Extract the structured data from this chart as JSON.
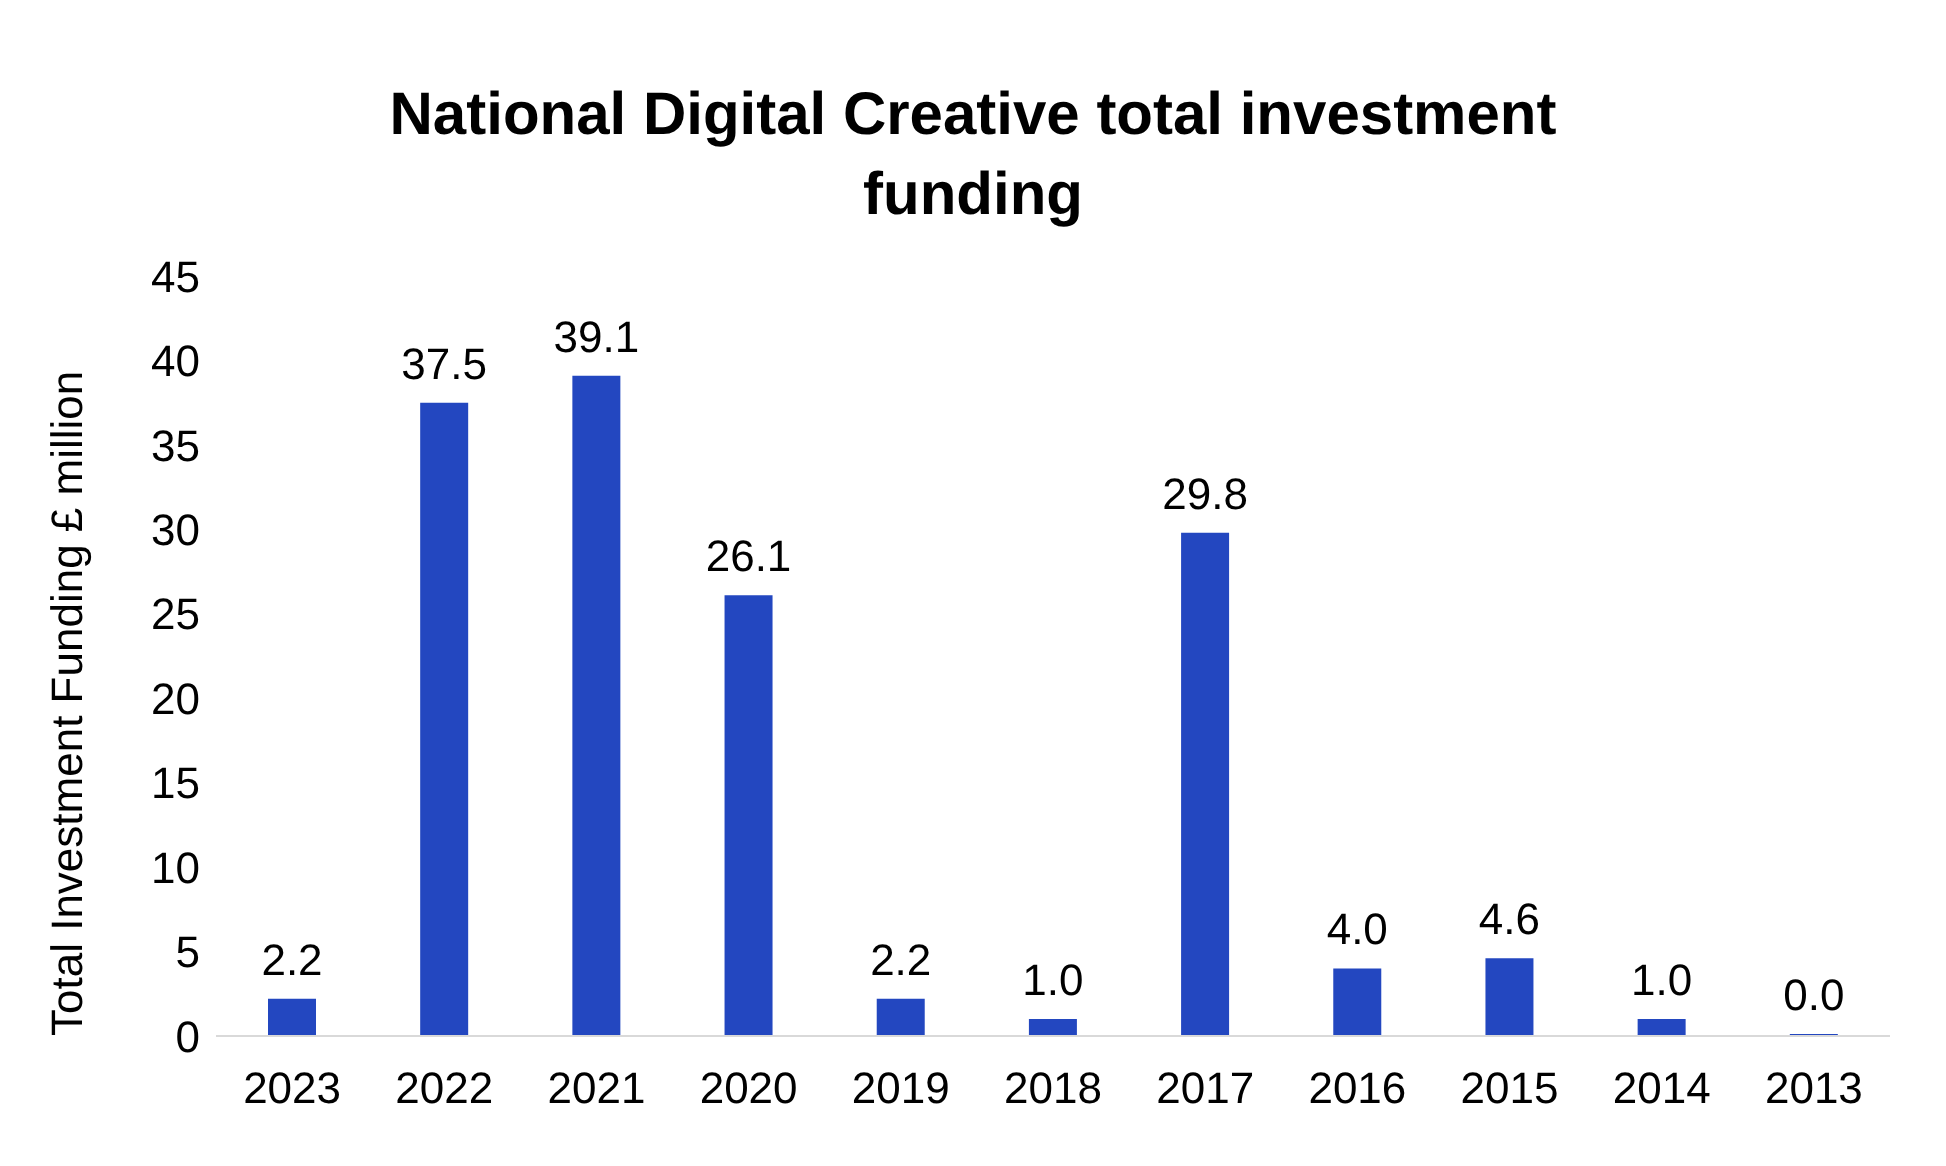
{
  "chart_data": {
    "type": "bar",
    "title": "National Digital Creative total investment funding",
    "ylabel": "Total Investment Funding £ million",
    "categories": [
      "2023",
      "2022",
      "2021",
      "2020",
      "2019",
      "2018",
      "2017",
      "2016",
      "2015",
      "2014",
      "2013"
    ],
    "values": [
      2.2,
      37.5,
      39.1,
      26.1,
      2.2,
      1.0,
      29.8,
      4.0,
      4.6,
      1.0,
      0.0
    ],
    "value_labels": [
      "2.2",
      "37.5",
      "39.1",
      "26.1",
      "2.2",
      "1.0",
      "29.8",
      "4.0",
      "4.6",
      "1.0",
      "0.0"
    ],
    "color": "#2347c0",
    "ylim": [
      0,
      45
    ],
    "yticks": [
      0,
      5,
      10,
      15,
      20,
      25,
      30,
      35,
      40,
      45
    ],
    "grid": false,
    "legend": false
  }
}
